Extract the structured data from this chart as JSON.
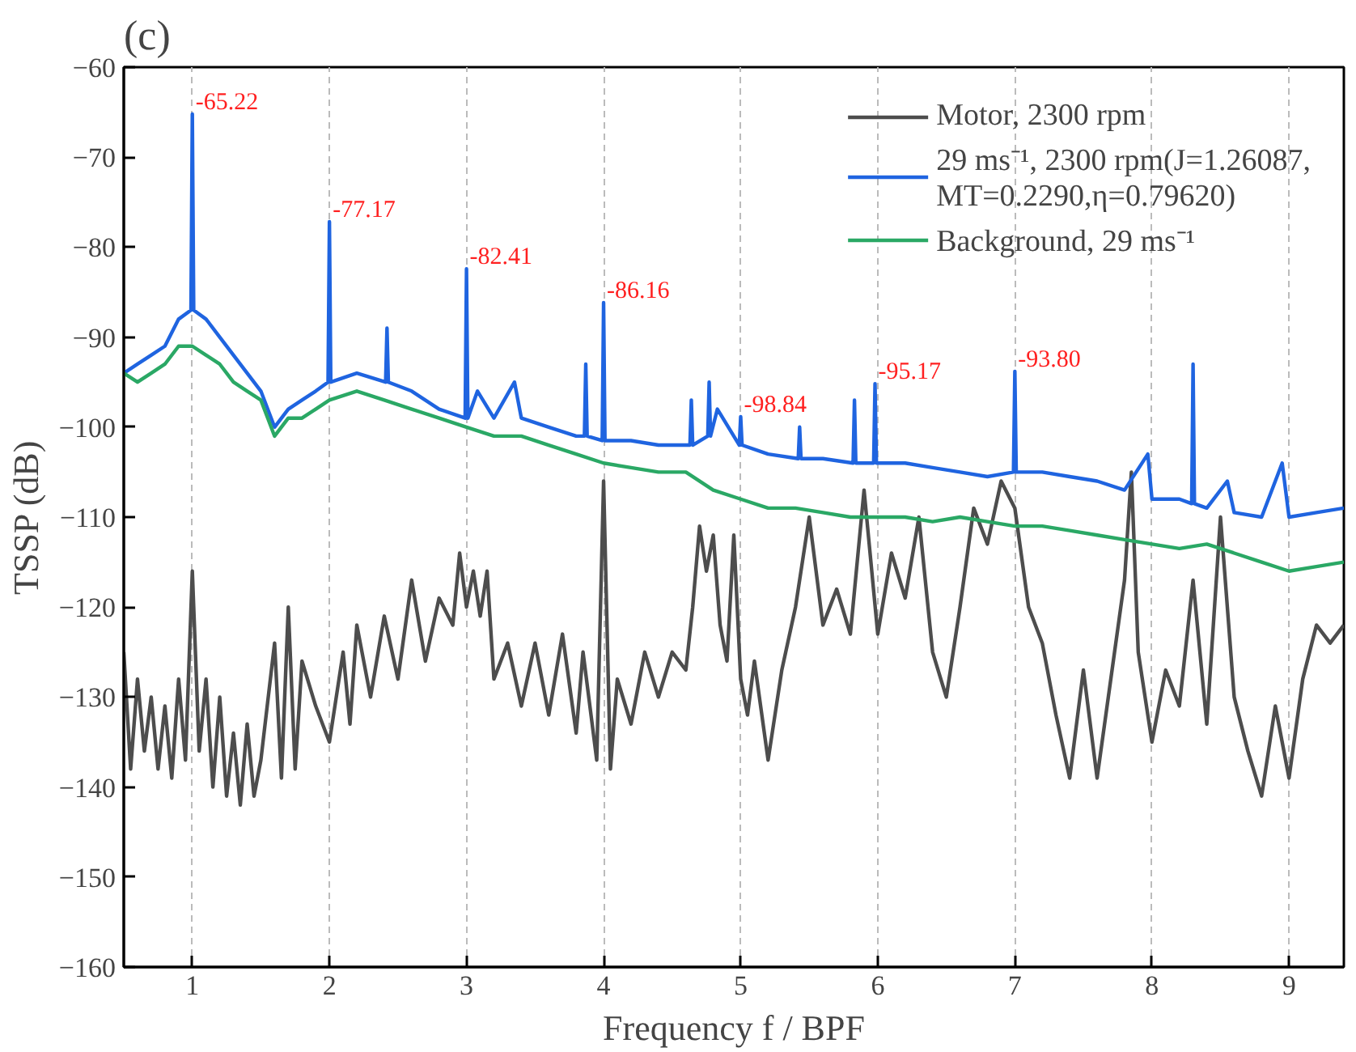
{
  "chart_data": {
    "type": "line",
    "title": "(c)",
    "xlabel": "Frequency f / BPF",
    "ylabel": "TSSP (dB)",
    "xlim": [
      0.5,
      9.4
    ],
    "xticks": [
      1,
      2,
      3,
      4,
      5,
      6,
      7,
      8,
      9
    ],
    "ylim": [
      -160,
      -60
    ],
    "yticks": [
      -160,
      -150,
      -140,
      -130,
      -120,
      -110,
      -100,
      -90,
      -80,
      -70,
      -60
    ],
    "grid": "x",
    "legend": "top right",
    "line_style": "solid",
    "series": [
      {
        "name": "Motor, 2300 rpm",
        "color": "#4d4d4d",
        "x": [
          0.5,
          0.55,
          0.6,
          0.65,
          0.7,
          0.75,
          0.8,
          0.85,
          0.9,
          0.95,
          1.0,
          1.05,
          1.1,
          1.15,
          1.2,
          1.25,
          1.3,
          1.35,
          1.4,
          1.45,
          1.5,
          1.6,
          1.65,
          1.7,
          1.75,
          1.8,
          1.9,
          2.0,
          2.1,
          2.15,
          2.2,
          2.3,
          2.4,
          2.5,
          2.6,
          2.7,
          2.8,
          2.9,
          2.95,
          3.0,
          3.05,
          3.1,
          3.15,
          3.2,
          3.3,
          3.4,
          3.5,
          3.6,
          3.7,
          3.8,
          3.85,
          3.95,
          4.0,
          4.05,
          4.1,
          4.2,
          4.3,
          4.4,
          4.5,
          4.6,
          4.65,
          4.7,
          4.75,
          4.8,
          4.85,
          4.9,
          4.95,
          5.0,
          5.05,
          5.1,
          5.2,
          5.3,
          5.4,
          5.5,
          5.6,
          5.7,
          5.8,
          5.9,
          6.0,
          6.1,
          6.2,
          6.3,
          6.4,
          6.5,
          6.6,
          6.7,
          6.8,
          6.9,
          7.0,
          7.1,
          7.2,
          7.3,
          7.4,
          7.5,
          7.6,
          7.7,
          7.8,
          7.85,
          7.9,
          8.0,
          8.1,
          8.2,
          8.3,
          8.4,
          8.5,
          8.6,
          8.7,
          8.8,
          8.9,
          9.0,
          9.1,
          9.2,
          9.3,
          9.4
        ],
        "values": [
          -125,
          -138,
          -128,
          -136,
          -130,
          -138,
          -131,
          -139,
          -128,
          -137,
          -116,
          -136,
          -128,
          -140,
          -130,
          -141,
          -134,
          -142,
          -133,
          -141,
          -137,
          -124,
          -139,
          -120,
          -138,
          -126,
          -131,
          -135,
          -125,
          -133,
          -122,
          -130,
          -121,
          -128,
          -117,
          -126,
          -119,
          -122,
          -114,
          -120,
          -116,
          -121,
          -116,
          -128,
          -124,
          -131,
          -124,
          -132,
          -123,
          -134,
          -125,
          -137,
          -106,
          -138,
          -128,
          -133,
          -125,
          -130,
          -125,
          -127,
          -120,
          -111,
          -116,
          -112,
          -122,
          -126,
          -112,
          -128,
          -132,
          -126,
          -137,
          -127,
          -120,
          -110,
          -122,
          -118,
          -123,
          -107,
          -123,
          -114,
          -119,
          -110,
          -125,
          -130,
          -120,
          -109,
          -113,
          -106,
          -109,
          -120,
          -124,
          -132,
          -139,
          -127,
          -139,
          -128,
          -117,
          -105,
          -125,
          -135,
          -127,
          -131,
          -117,
          -133,
          -110,
          -130,
          -136,
          -141,
          -131,
          -139,
          -128,
          -122,
          -124,
          -122
        ]
      },
      {
        "name": "29 ms⁻¹, 2300 rpm(J=1.26087, MT=0.2290,η=0.79620)",
        "color": "#1f64e0",
        "x": [
          0.5,
          0.6,
          0.7,
          0.8,
          0.9,
          0.99,
          1.0,
          1.01,
          1.1,
          1.2,
          1.3,
          1.4,
          1.5,
          1.6,
          1.7,
          1.8,
          1.9,
          1.99,
          2.0,
          2.01,
          2.2,
          2.41,
          2.42,
          2.43,
          2.6,
          2.8,
          2.99,
          3.0,
          3.01,
          3.08,
          3.2,
          3.35,
          3.4,
          3.6,
          3.8,
          3.86,
          3.87,
          3.88,
          3.99,
          4.0,
          4.01,
          4.2,
          4.4,
          4.63,
          4.64,
          4.65,
          4.76,
          4.77,
          4.78,
          4.83,
          4.99,
          5.0,
          5.01,
          5.2,
          5.42,
          5.43,
          5.44,
          5.6,
          5.82,
          5.83,
          5.84,
          5.97,
          5.98,
          5.99,
          6.2,
          6.4,
          6.6,
          6.8,
          6.99,
          7.0,
          7.01,
          7.2,
          7.4,
          7.6,
          7.8,
          7.97,
          8.0,
          8.2,
          8.29,
          8.3,
          8.31,
          8.4,
          8.55,
          8.6,
          8.8,
          8.95,
          9.0,
          9.2,
          9.4
        ],
        "values": [
          -94,
          -93,
          -92,
          -91,
          -88,
          -87,
          -65.22,
          -87,
          -88,
          -90,
          -92,
          -94,
          -96,
          -100,
          -98,
          -97,
          -96,
          -95,
          -77.17,
          -95,
          -94,
          -95,
          -89,
          -95,
          -96,
          -98,
          -99,
          -82.41,
          -99,
          -96,
          -99,
          -95,
          -99,
          -100,
          -101,
          -101,
          -93,
          -101,
          -101.5,
          -86.16,
          -101.5,
          -101.5,
          -102,
          -102,
          -97,
          -102,
          -101,
          -95,
          -101,
          -98,
          -102,
          -98.84,
          -102,
          -103,
          -103.5,
          -100,
          -103.5,
          -103.5,
          -104,
          -97,
          -104,
          -104,
          -95.17,
          -104,
          -104,
          -104.5,
          -105,
          -105.5,
          -105,
          -93.8,
          -105,
          -105,
          -105.5,
          -106,
          -107,
          -103,
          -108,
          -108,
          -108.5,
          -93,
          -108.5,
          -109,
          -106,
          -109.5,
          -110,
          -104,
          -110,
          -109.5,
          -109
        ]
      },
      {
        "name": "Background, 29 ms⁻¹",
        "color": "#2aa865",
        "x": [
          0.5,
          0.6,
          0.7,
          0.8,
          0.9,
          1.0,
          1.1,
          1.2,
          1.3,
          1.4,
          1.5,
          1.6,
          1.7,
          1.8,
          1.9,
          2.0,
          2.2,
          2.4,
          2.6,
          2.8,
          3.0,
          3.2,
          3.4,
          3.6,
          3.8,
          4.0,
          4.2,
          4.4,
          4.6,
          4.8,
          5.0,
          5.2,
          5.4,
          5.6,
          5.8,
          6.0,
          6.2,
          6.4,
          6.6,
          6.8,
          7.0,
          7.2,
          7.4,
          7.6,
          7.8,
          8.0,
          8.2,
          8.4,
          8.6,
          8.8,
          9.0,
          9.2,
          9.4
        ],
        "values": [
          -94,
          -95,
          -94,
          -93,
          -91,
          -91,
          -92,
          -93,
          -95,
          -96,
          -97,
          -101,
          -99,
          -99,
          -98,
          -97,
          -96,
          -97,
          -98,
          -99,
          -100,
          -101,
          -101,
          -102,
          -103,
          -104,
          -104.5,
          -105,
          -105,
          -107,
          -108,
          -109,
          -109,
          -109.5,
          -110,
          -110,
          -110,
          -110.5,
          -110,
          -110.5,
          -111,
          -111,
          -111.5,
          -112,
          -112.5,
          -113,
          -113.5,
          -113,
          -114,
          -115,
          -116,
          -115.5,
          -115
        ]
      }
    ],
    "annotations": [
      {
        "text": "-65.22",
        "x": 1,
        "y": -65.22
      },
      {
        "text": "-77.17",
        "x": 2,
        "y": -77.17
      },
      {
        "text": "-82.41",
        "x": 3,
        "y": -82.41
      },
      {
        "text": "-86.16",
        "x": 4,
        "y": -86.16
      },
      {
        "text": "-98.84",
        "x": 5,
        "y": -98.84
      },
      {
        "text": "-95.17",
        "x": 5.98,
        "y": -95.17
      },
      {
        "text": "-93.80",
        "x": 7,
        "y": -93.8
      }
    ]
  }
}
